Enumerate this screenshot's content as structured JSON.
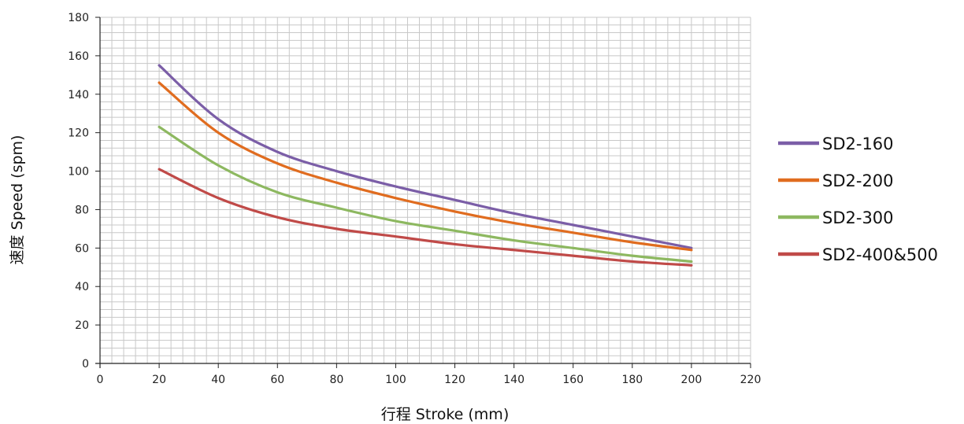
{
  "chart_data": {
    "type": "line",
    "title": "",
    "xlabel": "行程 Stroke (mm)",
    "ylabel": "速度 Speed (spm)",
    "xlim": [
      0,
      220
    ],
    "ylim": [
      0,
      180
    ],
    "xticks": [
      0,
      20,
      40,
      60,
      80,
      100,
      120,
      140,
      160,
      180,
      200,
      220
    ],
    "yticks": [
      0,
      20,
      40,
      60,
      80,
      100,
      120,
      140,
      160,
      180
    ],
    "grid": true,
    "legend_position": "right",
    "x": [
      20,
      40,
      60,
      80,
      100,
      120,
      140,
      160,
      180,
      200
    ],
    "series": [
      {
        "name": "SD2-160",
        "color": "#7b5ea7",
        "values": [
          155,
          127,
          110,
          100,
          92,
          85,
          78,
          72,
          66,
          60
        ]
      },
      {
        "name": "SD2-200",
        "color": "#e06c1f",
        "values": [
          146,
          120,
          104,
          94,
          86,
          79,
          73,
          68,
          63,
          59
        ]
      },
      {
        "name": "SD2-300",
        "color": "#8db860",
        "values": [
          123,
          103,
          89,
          81,
          74,
          69,
          64,
          60,
          56,
          53
        ]
      },
      {
        "name": "SD2-400&500",
        "color": "#c04a48",
        "values": [
          101,
          86,
          76,
          70,
          66,
          62,
          59,
          56,
          53,
          51
        ]
      }
    ]
  }
}
